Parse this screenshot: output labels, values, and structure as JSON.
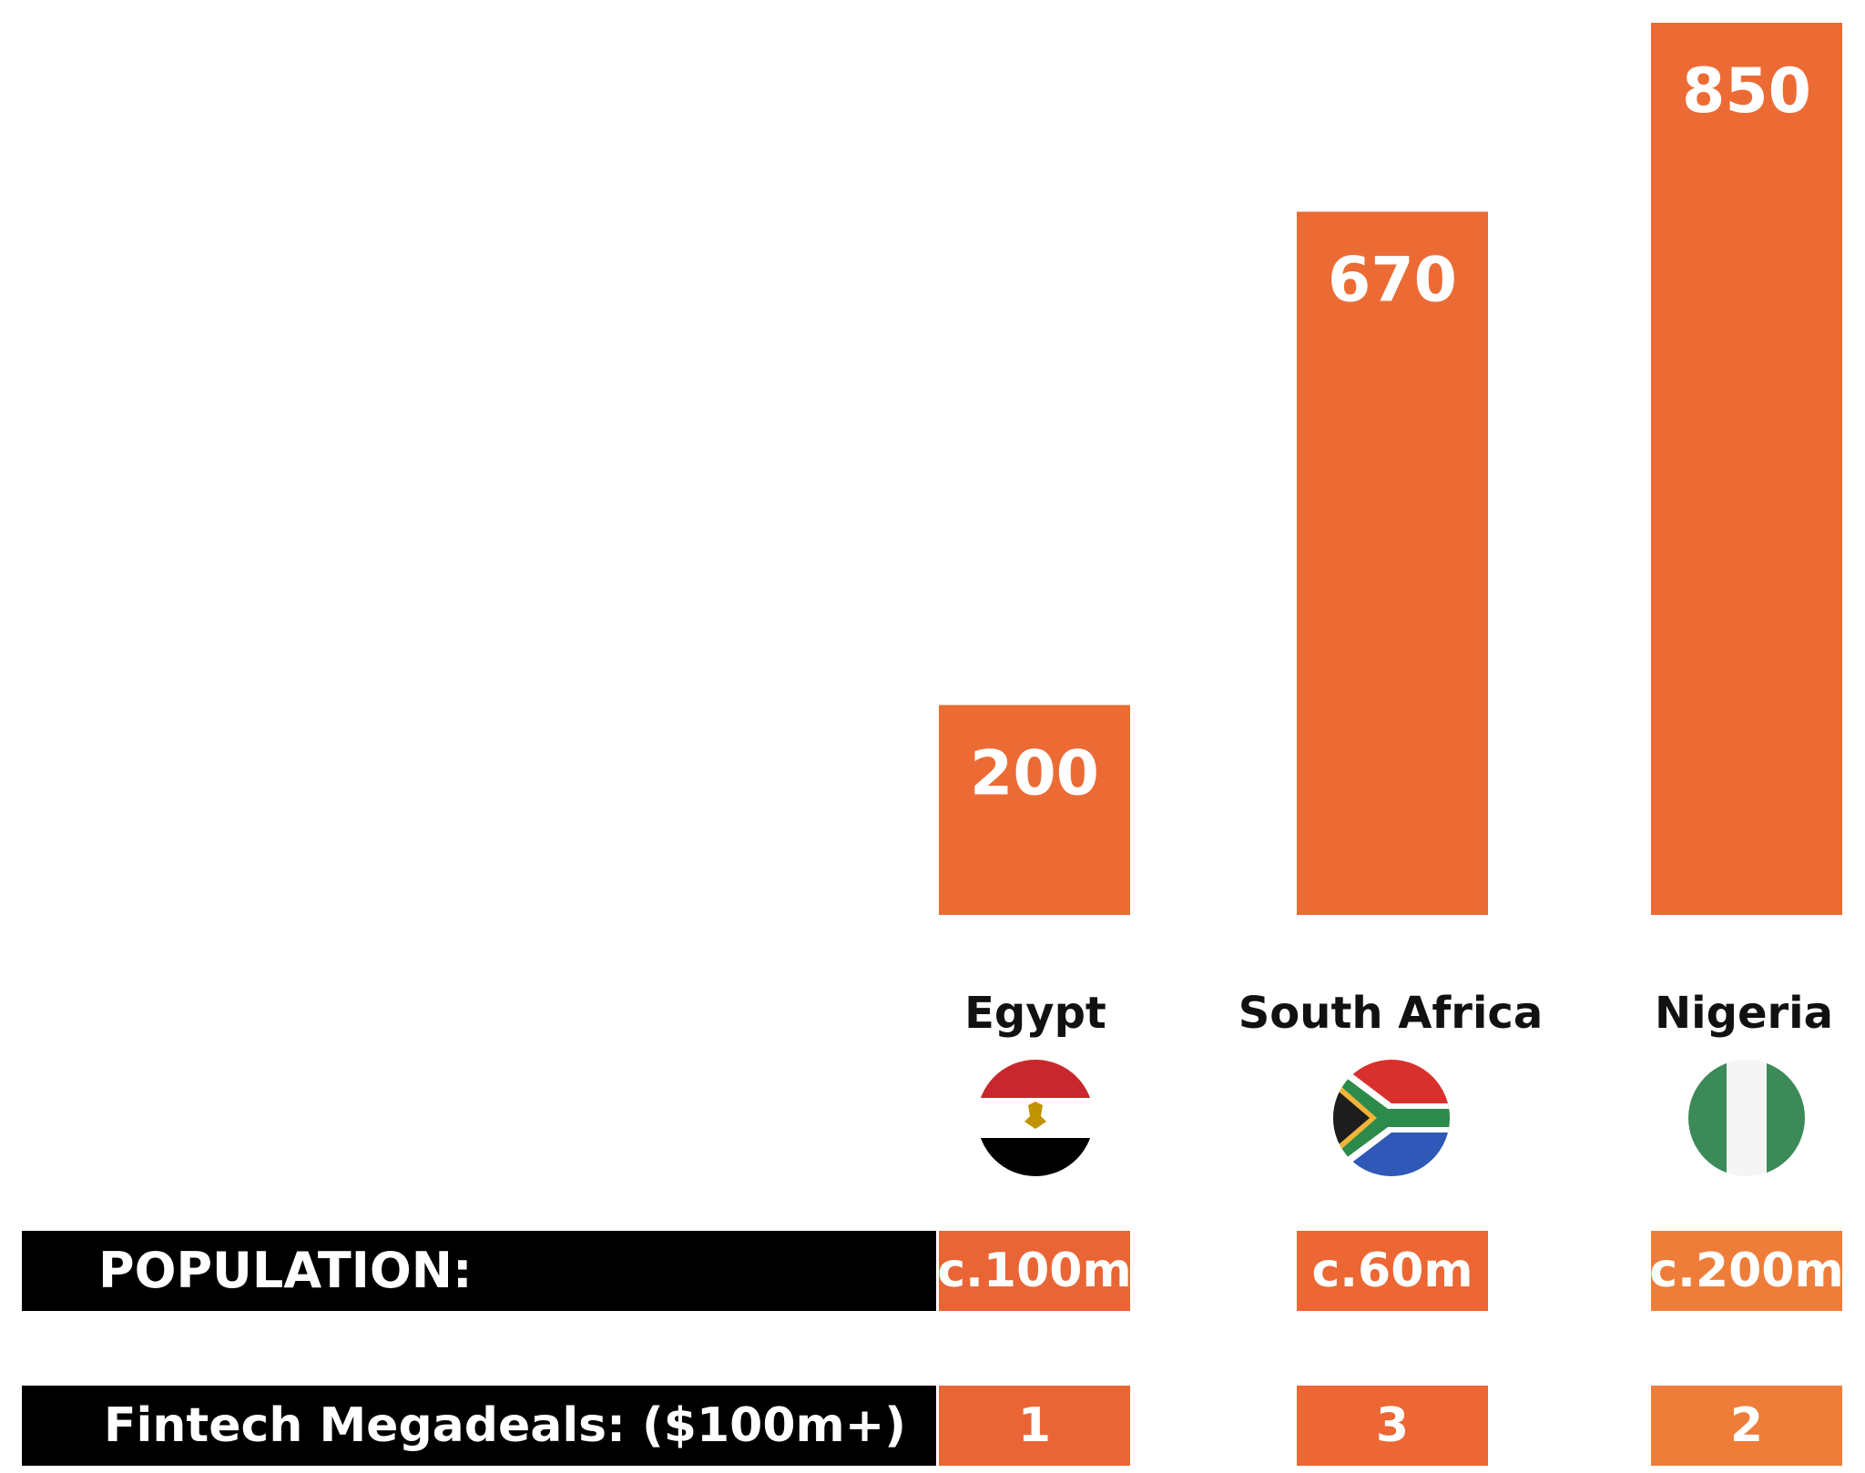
{
  "chart_data": {
    "type": "bar",
    "categories": [
      "Egypt",
      "South Africa",
      "Nigeria"
    ],
    "values": [
      200,
      670,
      850
    ],
    "ylim": [
      0,
      850
    ],
    "data_labels": [
      "200",
      "670",
      "850"
    ],
    "grid": false,
    "colors": {
      "bar_top": "#e8524d",
      "bar_bottom": "#ec6b35"
    }
  },
  "flags": [
    {
      "name": "egypt-flag-icon"
    },
    {
      "name": "south-africa-flag-icon"
    },
    {
      "name": "nigeria-flag-icon"
    }
  ],
  "population": {
    "title": "POPULATION:",
    "values": [
      "c.100m",
      "c.60m",
      "c.200m"
    ]
  },
  "megadeals": {
    "title": "Fintech Megadeals: ($100m+)",
    "values": [
      "1",
      "3",
      "2"
    ]
  },
  "colors": {
    "row_bg": "#000000",
    "cell": [
      "#ea6535",
      "#ec6733",
      "#ee7d3a"
    ]
  }
}
